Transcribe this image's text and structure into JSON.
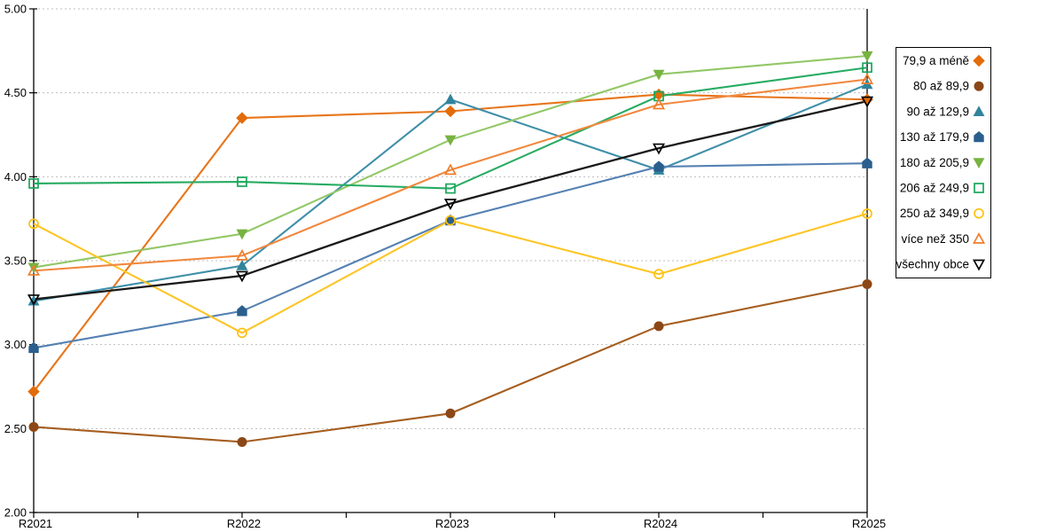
{
  "chart_data": {
    "type": "line",
    "title": "",
    "xlabel": "",
    "ylabel": "",
    "categories": [
      "R2021",
      "R2022",
      "R2023",
      "R2024",
      "R2025"
    ],
    "y_axis": {
      "min": 2.0,
      "max": 5.0,
      "step": 0.5,
      "tick_labels": [
        "5.00",
        "4.50",
        "4.00",
        "3.50",
        "3.00",
        "2.50",
        "2.00"
      ]
    },
    "grid": "horizontal-dashed",
    "legend_position": "right",
    "series": [
      {
        "name": "79,9 a méně",
        "marker": "diamond",
        "fill": "filled",
        "color": "#e26b0a",
        "line_color": "#e8751a",
        "values": [
          2.72,
          4.35,
          4.39,
          4.49,
          4.46
        ]
      },
      {
        "name": "80 až 89,9",
        "marker": "circle",
        "fill": "filled",
        "color": "#8c4716",
        "line_color": "#a55e20",
        "values": [
          2.51,
          2.42,
          2.59,
          3.11,
          3.36
        ]
      },
      {
        "name": "90 až 129,9",
        "marker": "triangle-up",
        "fill": "filled",
        "color": "#31849b",
        "line_color": "#3f8fa8",
        "values": [
          3.26,
          3.47,
          4.46,
          4.04,
          4.55
        ]
      },
      {
        "name": "130 až 179,9",
        "marker": "pentagon",
        "fill": "filled",
        "color": "#2a5f8d",
        "line_color": "#5581b3",
        "values": [
          2.98,
          3.2,
          3.74,
          4.06,
          4.08
        ]
      },
      {
        "name": "180 až 205,9",
        "marker": "triangle-down",
        "fill": "filled",
        "color": "#77b340",
        "line_color": "#92c766",
        "values": [
          3.46,
          3.66,
          4.22,
          4.61,
          4.72
        ]
      },
      {
        "name": "206 až 249,9",
        "marker": "square",
        "fill": "hollow",
        "color": "#18a65a",
        "line_color": "#27ab62",
        "values": [
          3.96,
          3.97,
          3.93,
          4.48,
          4.65
        ]
      },
      {
        "name": "250 až 349,9",
        "marker": "circle",
        "fill": "hollow",
        "color": "#fdc10e",
        "line_color": "#fdc526",
        "values": [
          3.72,
          3.07,
          3.74,
          3.42,
          3.78
        ]
      },
      {
        "name": "více než 350",
        "marker": "triangle-up",
        "fill": "hollow",
        "color": "#ef7d2c",
        "line_color": "#f1883d",
        "values": [
          3.44,
          3.53,
          4.04,
          4.43,
          4.58
        ]
      },
      {
        "name": "všechny obce",
        "marker": "triangle-down",
        "fill": "hollow",
        "color": "#000000",
        "line_color": "#1a1a1a",
        "values": [
          3.27,
          3.41,
          3.84,
          4.17,
          4.45
        ]
      }
    ]
  },
  "colors": {
    "background": "#ffffff",
    "axis": "#000000",
    "gridline": "#bdbdbd",
    "legend_border": "#000000",
    "legend_background": "#ffffff"
  }
}
